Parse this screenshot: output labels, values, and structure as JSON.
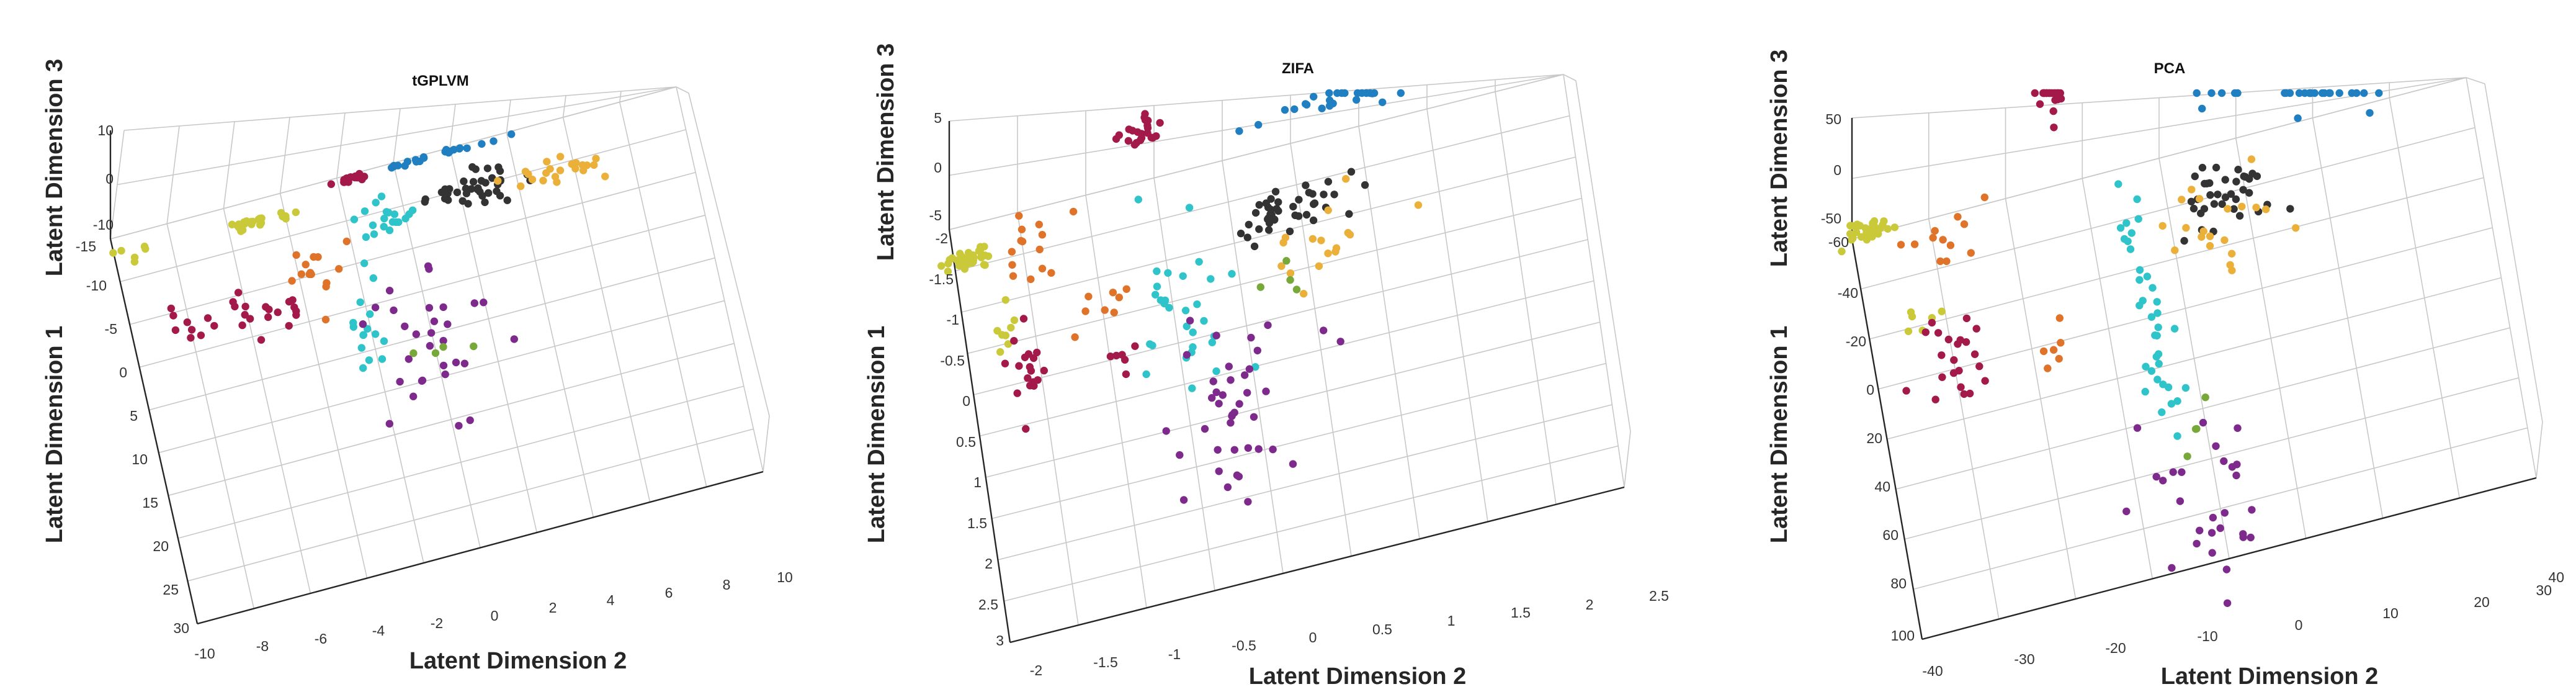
{
  "colors": {
    "yellow": "#c9c93a",
    "orange": "#e0732a",
    "crimson": "#a3194a",
    "cyan": "#2ec4c9",
    "blue": "#1f7fc0",
    "black": "#333333",
    "gold": "#eab03a",
    "purple": "#7e2a8c",
    "green": "#78a83a",
    "grid": "#c8c8c8",
    "axis": "#262626"
  },
  "chart_data": [
    {
      "type": "scatter",
      "title": "tGPLVM",
      "xlabel": "Latent Dimension 2",
      "ylabel": "Latent Dimension 1",
      "zlabel": "Latent Dimension 3",
      "x_ticks": [
        "-10",
        "-8",
        "-6",
        "-4",
        "-2",
        "0",
        "2",
        "4",
        "6",
        "8",
        "10"
      ],
      "y_ticks": [
        "-15",
        "-10",
        "-5",
        "0",
        "5",
        "10",
        "15",
        "20",
        "25",
        "30"
      ],
      "z_ticks": [
        "10",
        "0",
        "-10"
      ],
      "xlim": [
        -10,
        10
      ],
      "ylim": [
        -15,
        30
      ],
      "zlim": [
        -10,
        10
      ],
      "clusters": [
        {
          "color": "yellow",
          "n": 6,
          "center": [
            -9.2,
            -12.8
          ],
          "spread": [
            0.6,
            0.8
          ]
        },
        {
          "color": "yellow",
          "n": 26,
          "center": [
            -5.0,
            -12.5
          ],
          "spread": [
            0.6,
            0.25
          ]
        },
        {
          "color": "crimson",
          "n": 15,
          "center": [
            -7.4,
            -3.6
          ],
          "spread": [
            0.9,
            1.4
          ]
        },
        {
          "color": "crimson",
          "n": 12,
          "center": [
            -4.8,
            -2.4
          ],
          "spread": [
            0.6,
            1.2
          ]
        },
        {
          "color": "orange",
          "n": 14,
          "center": [
            -3.4,
            -4.6
          ],
          "spread": [
            0.6,
            2.2
          ]
        },
        {
          "color": "crimson",
          "n": 18,
          "center": [
            -1.6,
            -14.6
          ],
          "spread": [
            0.3,
            0.2
          ]
        },
        {
          "color": "blue",
          "n": 22,
          "center": [
            1.4,
            -14.6
          ],
          "spread": [
            1.1,
            0.2
          ]
        },
        {
          "color": "cyan",
          "n": 20,
          "center": [
            -0.8,
            -8.6
          ],
          "spread": [
            0.45,
            1.2
          ]
        },
        {
          "color": "black",
          "n": 38,
          "center": [
            2.6,
            -9.9
          ],
          "spread": [
            0.9,
            0.9
          ]
        },
        {
          "color": "gold",
          "n": 22,
          "center": [
            5.6,
            -9.2
          ],
          "spread": [
            0.9,
            0.8
          ]
        },
        {
          "color": "cyan",
          "n": 14,
          "center": [
            -2.1,
            3.0
          ],
          "spread": [
            0.3,
            3.0
          ]
        },
        {
          "color": "purple",
          "n": 30,
          "center": [
            0.0,
            8.0
          ],
          "spread": [
            1.3,
            4.5
          ]
        },
        {
          "color": "green",
          "n": 4,
          "center": [
            0.0,
            8.0
          ],
          "spread": [
            0.6,
            1.0
          ]
        }
      ]
    },
    {
      "type": "scatter",
      "title": "ZIFA",
      "xlabel": "Latent Dimension 2",
      "ylabel": "Latent Dimension 1",
      "zlabel": "Latent Dimension 3",
      "x_ticks": [
        "-2",
        "-1.5",
        "-1",
        "-0.5",
        "0",
        "0.5",
        "1",
        "1.5",
        "2",
        "2.5"
      ],
      "y_ticks": [
        "-2",
        "-1.5",
        "-1",
        "-0.5",
        "0",
        "0.5",
        "1",
        "1.5",
        "2",
        "2.5",
        "3"
      ],
      "z_ticks": [
        "5",
        "0",
        "-5"
      ],
      "xlim": [
        -2,
        2.5
      ],
      "ylim": [
        -2,
        3
      ],
      "zlim": [
        -5,
        5
      ],
      "clusters": [
        {
          "color": "yellow",
          "n": 34,
          "center": [
            -1.88,
            -1.6
          ],
          "spread": [
            0.1,
            0.06
          ]
        },
        {
          "color": "orange",
          "n": 14,
          "center": [
            -1.4,
            -1.55
          ],
          "spread": [
            0.18,
            0.18
          ]
        },
        {
          "color": "yellow",
          "n": 8,
          "center": [
            -1.72,
            -0.7
          ],
          "spread": [
            0.05,
            0.22
          ]
        },
        {
          "color": "crimson",
          "n": 18,
          "center": [
            -1.6,
            -0.2
          ],
          "spread": [
            0.08,
            0.3
          ]
        },
        {
          "color": "orange",
          "n": 8,
          "center": [
            -1.0,
            -0.5
          ],
          "spread": [
            0.12,
            0.25
          ]
        },
        {
          "color": "crimson",
          "n": 6,
          "center": [
            -0.9,
            -0.05
          ],
          "spread": [
            0.1,
            0.12
          ]
        },
        {
          "color": "crimson",
          "n": 22,
          "center": [
            -0.55,
            -2.6
          ],
          "spread": [
            0.08,
            0.12
          ]
        },
        {
          "color": "cyan",
          "n": 30,
          "center": [
            -0.45,
            -0.4
          ],
          "spread": [
            0.18,
            0.55
          ]
        },
        {
          "color": "purple",
          "n": 34,
          "center": [
            -0.28,
            1.0
          ],
          "spread": [
            0.18,
            0.55
          ]
        },
        {
          "color": "blue",
          "n": 24,
          "center": [
            0.85,
            -2.4
          ],
          "spread": [
            0.35,
            0.12
          ]
        },
        {
          "color": "black",
          "n": 42,
          "center": [
            0.42,
            -1.25
          ],
          "spread": [
            0.22,
            0.18
          ]
        },
        {
          "color": "gold",
          "n": 16,
          "center": [
            0.55,
            -0.75
          ],
          "spread": [
            0.3,
            0.25
          ]
        },
        {
          "color": "green",
          "n": 4,
          "center": [
            0.35,
            -0.3
          ],
          "spread": [
            0.1,
            0.15
          ]
        },
        {
          "color": "purple",
          "n": 6,
          "center": [
            0.1,
            0.3
          ],
          "spread": [
            0.25,
            0.2
          ]
        }
      ]
    },
    {
      "type": "scatter",
      "title": "PCA",
      "xlabel": "Latent Dimension 2",
      "ylabel": "Latent Dimension 1",
      "zlabel": "Latent Dimension 3",
      "x_ticks": [
        "-40",
        "-30",
        "-20",
        "-10",
        "0",
        "10",
        "20",
        "30",
        "40"
      ],
      "y_ticks": [
        "-60",
        "-40",
        "-20",
        "0",
        "20",
        "40",
        "60",
        "80",
        "100"
      ],
      "z_ticks": [
        "50",
        "0",
        "-50"
      ],
      "xlim": [
        -40,
        40
      ],
      "ylim": [
        -60,
        100
      ],
      "zlim": [
        -50,
        50
      ],
      "clusters": [
        {
          "color": "yellow",
          "n": 34,
          "center": [
            -38,
            -62
          ],
          "spread": [
            1.6,
            2.0
          ]
        },
        {
          "color": "orange",
          "n": 12,
          "center": [
            -29,
            -52
          ],
          "spread": [
            2.5,
            5.0
          ]
        },
        {
          "color": "yellow",
          "n": 6,
          "center": [
            -33,
            -22
          ],
          "spread": [
            1.0,
            4.0
          ]
        },
        {
          "color": "crimson",
          "n": 22,
          "center": [
            -30,
            -5
          ],
          "spread": [
            1.8,
            10.0
          ]
        },
        {
          "color": "orange",
          "n": 6,
          "center": [
            -18,
            2
          ],
          "spread": [
            1.2,
            6.0
          ]
        },
        {
          "color": "crimson",
          "n": 24,
          "center": [
            -11.5,
            -105
          ],
          "spread": [
            1.0,
            10.0
          ]
        },
        {
          "color": "cyan",
          "n": 36,
          "center": [
            -5,
            -2
          ],
          "spread": [
            1.5,
            28.0
          ]
        },
        {
          "color": "purple",
          "n": 28,
          "center": [
            -2,
            70
          ],
          "spread": [
            3.0,
            20.0
          ]
        },
        {
          "color": "green",
          "n": 4,
          "center": [
            -1,
            45
          ],
          "spread": [
            1.0,
            10.0
          ]
        },
        {
          "color": "blue",
          "n": 26,
          "center": [
            18,
            -82
          ],
          "spread": [
            7.0,
            15.0
          ]
        },
        {
          "color": "black",
          "n": 36,
          "center": [
            8,
            -38
          ],
          "spread": [
            3.0,
            7.0
          ]
        },
        {
          "color": "gold",
          "n": 20,
          "center": [
            6,
            -28
          ],
          "spread": [
            4.0,
            8.0
          ]
        }
      ]
    }
  ]
}
